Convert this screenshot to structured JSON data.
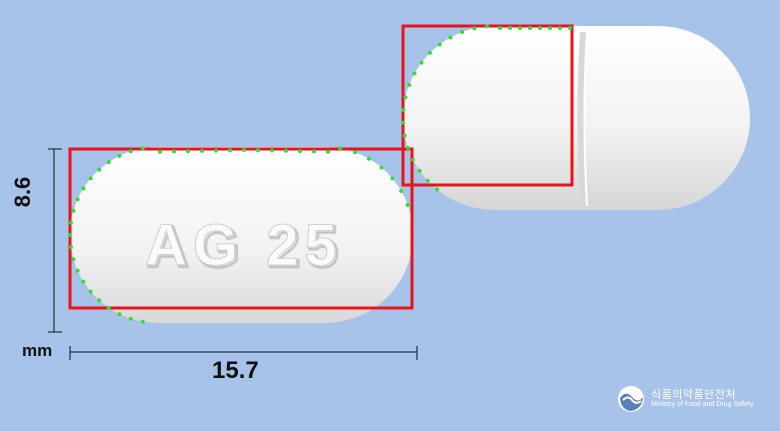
{
  "photo": {
    "pill_front_imprint": "AG 25",
    "pill_back_feature": "score line",
    "pill_color": "#ffffff",
    "annotation_box_color": "#e8141b",
    "outline_point_color": "#33dd33",
    "background_color": "#a8c3ea"
  },
  "dimensions": {
    "height_value": "8.6",
    "width_value": "15.7",
    "unit": "mm"
  },
  "watermark": {
    "org_korean": "식품의약품안전처",
    "org_english": "Ministry of Food and Drug Safety"
  }
}
